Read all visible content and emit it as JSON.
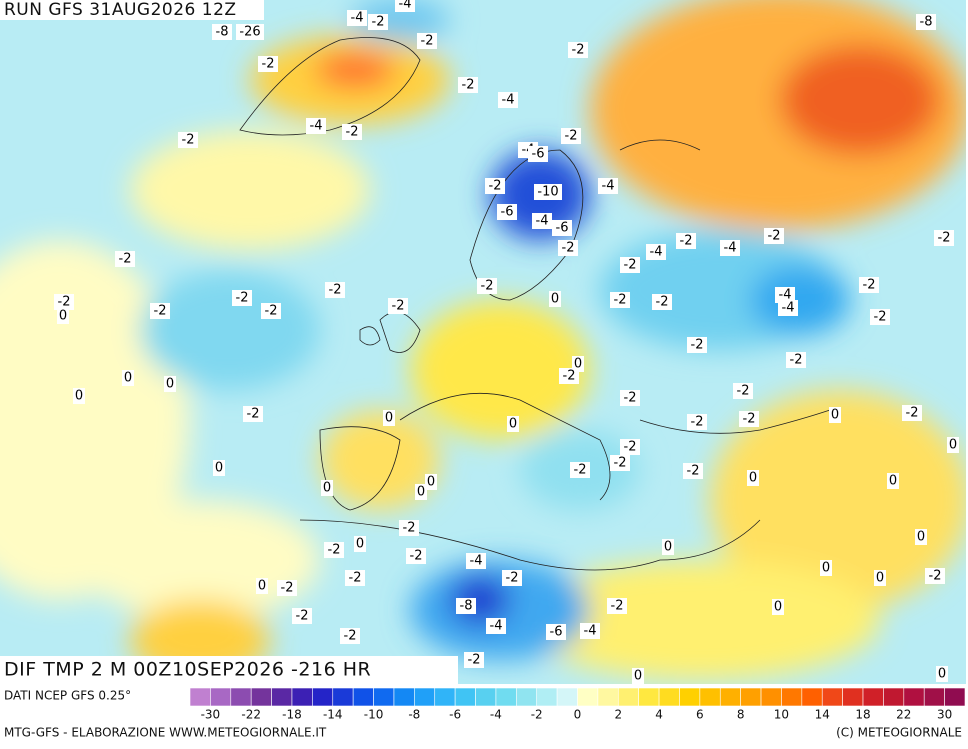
{
  "header": {
    "run": "RUN GFS 31AUG2026 12Z"
  },
  "map": {
    "product": "DIF TMP 2 M 00Z10SEP2026 -216 HR",
    "labels": [
      -8,
      -26,
      -4,
      -2,
      -4,
      -2,
      -8,
      -2,
      -2,
      -2,
      -4,
      -4,
      -2,
      -2,
      -2,
      -4,
      -6,
      -2,
      -10,
      -4,
      -6,
      -4,
      -6,
      -2,
      -4,
      -2,
      -4,
      -2,
      -2,
      -2,
      -2,
      -2,
      0,
      -2,
      -2,
      -4,
      -4,
      -2,
      -2,
      -2,
      0,
      -2,
      -2,
      -2,
      -2,
      -2,
      -2,
      0,
      -2,
      -2,
      0,
      0,
      0,
      -2,
      -2,
      -2,
      0,
      0,
      -2,
      -2,
      -2,
      0,
      0,
      -2,
      -2,
      -2,
      -2,
      0,
      0,
      0,
      0,
      0,
      0,
      -2,
      -2,
      0,
      -2,
      0,
      0,
      -4,
      -2,
      -2,
      -2,
      0,
      0,
      0,
      -2,
      -8,
      -2,
      -2,
      0,
      -4,
      -6,
      -4,
      -2,
      -2,
      0,
      0
    ]
  },
  "legend": {
    "source": "DATI NCEP GFS 0.25°",
    "colors": [
      "#c080d0",
      "#a868c4",
      "#8c4cb0",
      "#74349c",
      "#5a28a4",
      "#3c20b4",
      "#2424c8",
      "#1a3ad8",
      "#1052e8",
      "#106af0",
      "#1488f4",
      "#20a0f8",
      "#30b4f8",
      "#40c4f4",
      "#58d0f0",
      "#70dcf0",
      "#90e4f0",
      "#b0eef4",
      "#d4f6f8",
      "#ffffc4",
      "#fff8a0",
      "#fff070",
      "#ffe840",
      "#ffdc20",
      "#ffd000",
      "#ffc000",
      "#ffb000",
      "#ffa000",
      "#ff9000",
      "#ff7800",
      "#ff6000",
      "#f04818",
      "#e03020",
      "#d02028",
      "#c01830",
      "#b01040",
      "#a01048",
      "#900c50"
    ],
    "ticks": [
      -30,
      -22,
      -18,
      -14,
      -10,
      -8,
      -6,
      -4,
      -2,
      0,
      2,
      4,
      6,
      8,
      10,
      14,
      18,
      22,
      30
    ]
  },
  "footer": {
    "credit": "MTG-GFS - ELABORAZIONE WWW.METEOGIORNALE.IT",
    "copyright": "(C) METEOGIORNALE"
  }
}
